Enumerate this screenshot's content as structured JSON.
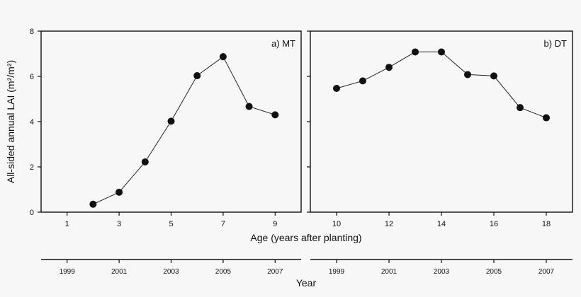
{
  "chart_data": [
    {
      "type": "line",
      "panel_label": "a) MT",
      "ylabel": "All-sided annual LAI (m²/m²)",
      "ylim": [
        0,
        8
      ],
      "yticks": [
        0,
        2,
        4,
        6,
        8
      ],
      "xlim": [
        0,
        10
      ],
      "xticks": [
        1,
        3,
        5,
        7,
        9
      ],
      "year_ticks": [
        {
          "age": 1,
          "year": "1999"
        },
        {
          "age": 3,
          "year": "2001"
        },
        {
          "age": 5,
          "year": "2003"
        },
        {
          "age": 7,
          "year": "2005"
        },
        {
          "age": 9,
          "year": "2007"
        }
      ],
      "series": [
        {
          "x": [
            2,
            3,
            4,
            5,
            6,
            7,
            8,
            9
          ],
          "y": [
            0.35,
            0.88,
            2.22,
            4.02,
            6.03,
            6.87,
            4.67,
            4.3
          ]
        }
      ]
    },
    {
      "type": "line",
      "panel_label": "b) DT",
      "ylim": [
        0,
        8
      ],
      "yticks": [
        0,
        2,
        4,
        6,
        8
      ],
      "xlim": [
        9,
        19
      ],
      "xticks": [
        10,
        12,
        14,
        16,
        18
      ],
      "year_ticks": [
        {
          "age": 10,
          "year": "1999"
        },
        {
          "age": 12,
          "year": "2001"
        },
        {
          "age": 14,
          "year": "2003"
        },
        {
          "age": 16,
          "year": "2005"
        },
        {
          "age": 18,
          "year": "2007"
        }
      ],
      "series": [
        {
          "x": [
            10,
            11,
            12,
            13,
            14,
            15,
            16,
            17,
            18
          ],
          "y": [
            5.47,
            5.8,
            6.4,
            7.08,
            7.08,
            6.08,
            6.02,
            4.62,
            4.17
          ]
        }
      ]
    }
  ],
  "shared": {
    "xlabel": "Age (years after planting)",
    "year_axis_title": "Year"
  },
  "colors": {
    "line": "#222222",
    "marker": "#111111",
    "axis": "#111111"
  }
}
